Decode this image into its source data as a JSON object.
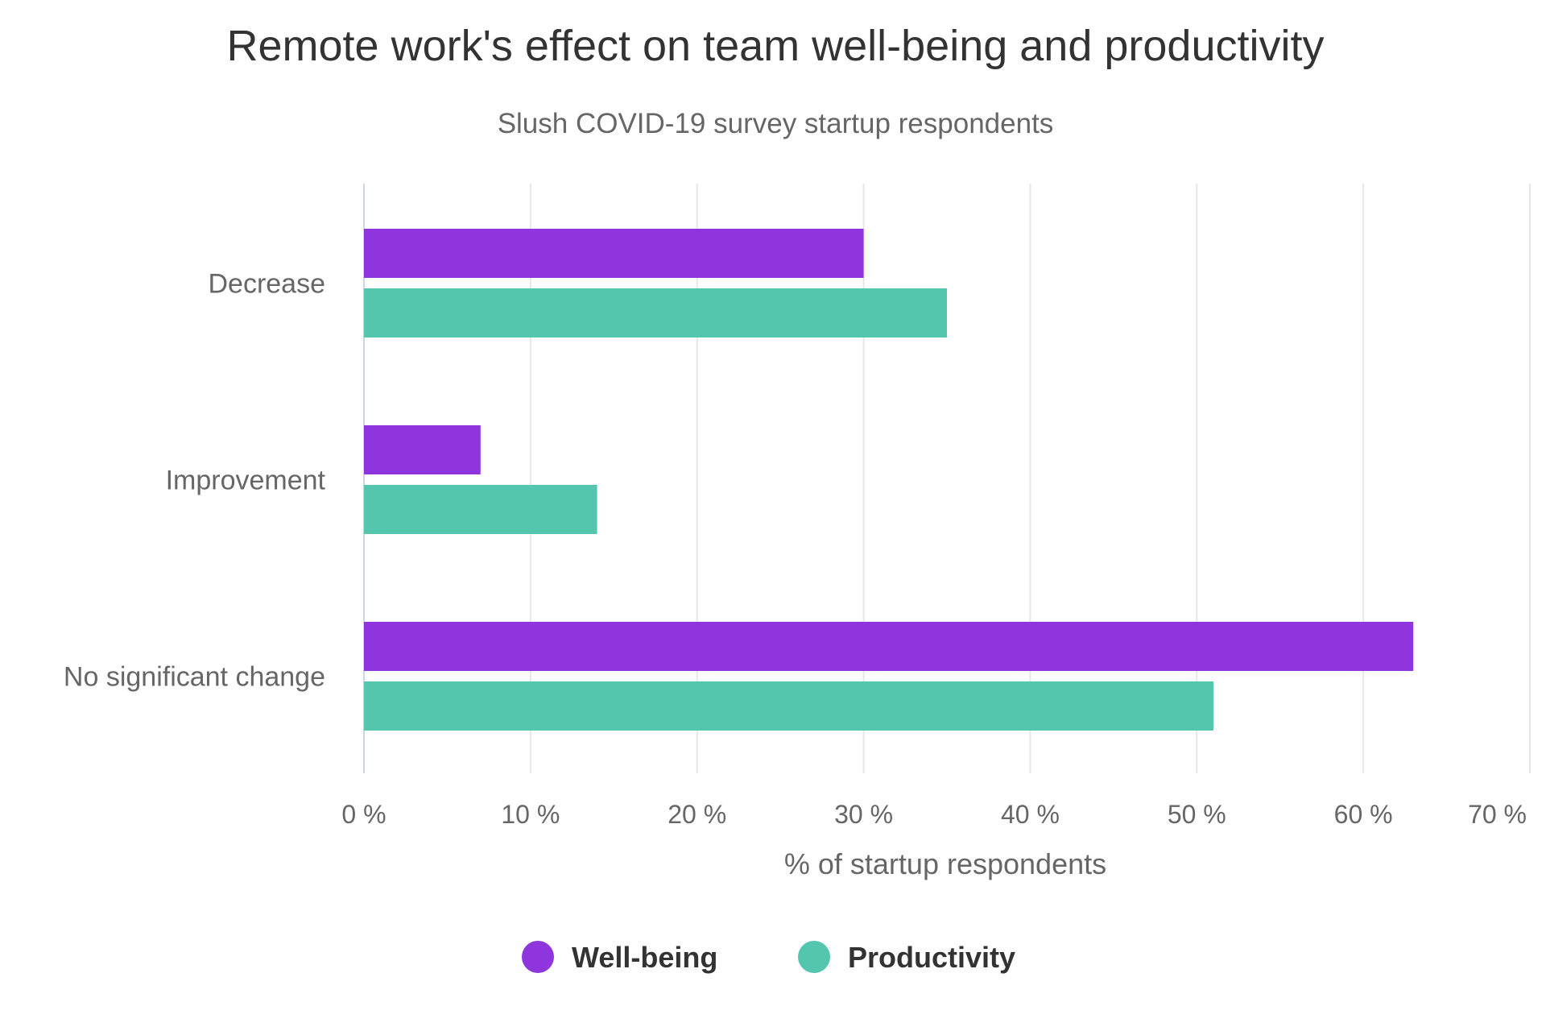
{
  "chart_data": {
    "type": "bar",
    "orientation": "horizontal",
    "title": "Remote work's effect on team well-being and productivity",
    "subtitle": "Slush COVID-19 survey startup respondents",
    "categories": [
      "Decrease",
      "Improvement",
      "No significant change"
    ],
    "series": [
      {
        "name": "Well-being",
        "color": "#8e35dd",
        "values": [
          30,
          7,
          63
        ]
      },
      {
        "name": "Productivity",
        "color": "#54c6ad",
        "values": [
          35,
          14,
          51
        ]
      }
    ],
    "xlabel": "% of startup respondents",
    "ylabel": "",
    "xlim": [
      0,
      70
    ],
    "ticks": [
      0,
      10,
      20,
      30,
      40,
      50,
      60,
      70
    ],
    "tick_labels": [
      "0 %",
      "10 %",
      "20 %",
      "30 %",
      "40 %",
      "50 %",
      "60 %",
      "70 %"
    ],
    "grid": true,
    "legend_position": "bottom-center",
    "colors": {
      "gridline": "#e6e6e6",
      "zero_line": "#ccd6eb",
      "title": "#333333",
      "labels": "#666666"
    }
  }
}
